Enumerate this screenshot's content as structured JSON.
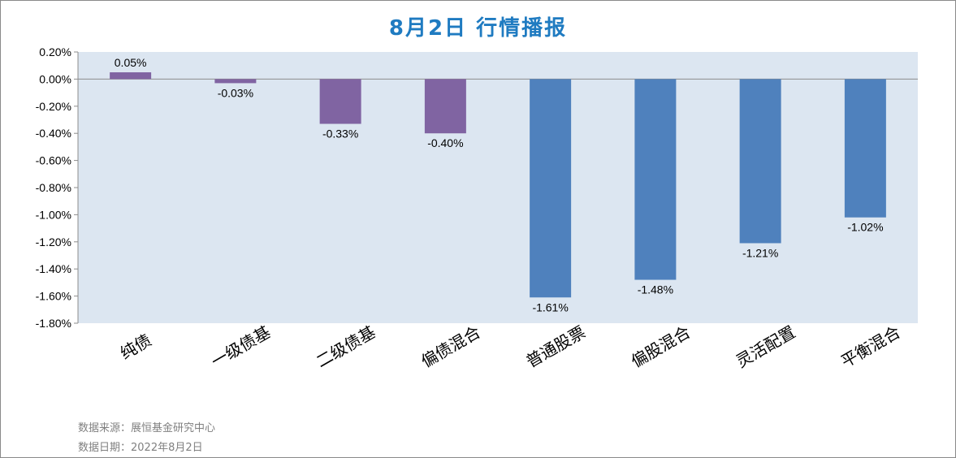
{
  "title": "8月2日  行情播报",
  "footer": {
    "source": "数据来源：展恒基金研究中心",
    "date": "数据日期：2022年8月2日"
  },
  "colors": {
    "plot_bg": "#dce6f1",
    "bond_bar": "#8064a2",
    "equity_bar": "#4f81bd",
    "title": "#1f7bc1"
  },
  "chart_data": {
    "type": "bar",
    "title": "8月2日  行情播报",
    "categories": [
      "纯债",
      "一级债基",
      "二级债基",
      "偏债混合",
      "普通股票",
      "偏股混合",
      "灵活配置",
      "平衡混合"
    ],
    "values": [
      0.05,
      -0.03,
      -0.33,
      -0.4,
      -1.61,
      -1.48,
      -1.21,
      -1.02
    ],
    "value_labels": [
      "0.05%",
      "-0.03%",
      "-0.33%",
      "-0.40%",
      "-1.61%",
      "-1.48%",
      "-1.21%",
      "-1.02%"
    ],
    "bar_colors": [
      "#8064a2",
      "#8064a2",
      "#8064a2",
      "#8064a2",
      "#4f81bd",
      "#4f81bd",
      "#4f81bd",
      "#4f81bd"
    ],
    "ylim": [
      -1.8,
      0.2
    ],
    "yticks": [
      0.2,
      0.0,
      -0.2,
      -0.4,
      -0.6,
      -0.8,
      -1.0,
      -1.2,
      -1.4,
      -1.6,
      -1.8
    ],
    "ytick_labels": [
      "0.20%",
      "0.00%",
      "-0.20%",
      "-0.40%",
      "-0.60%",
      "-0.80%",
      "-1.00%",
      "-1.20%",
      "-1.40%",
      "-1.60%",
      "-1.80%"
    ],
    "xlabel": "",
    "ylabel": "",
    "grid": false,
    "legend": "none"
  }
}
